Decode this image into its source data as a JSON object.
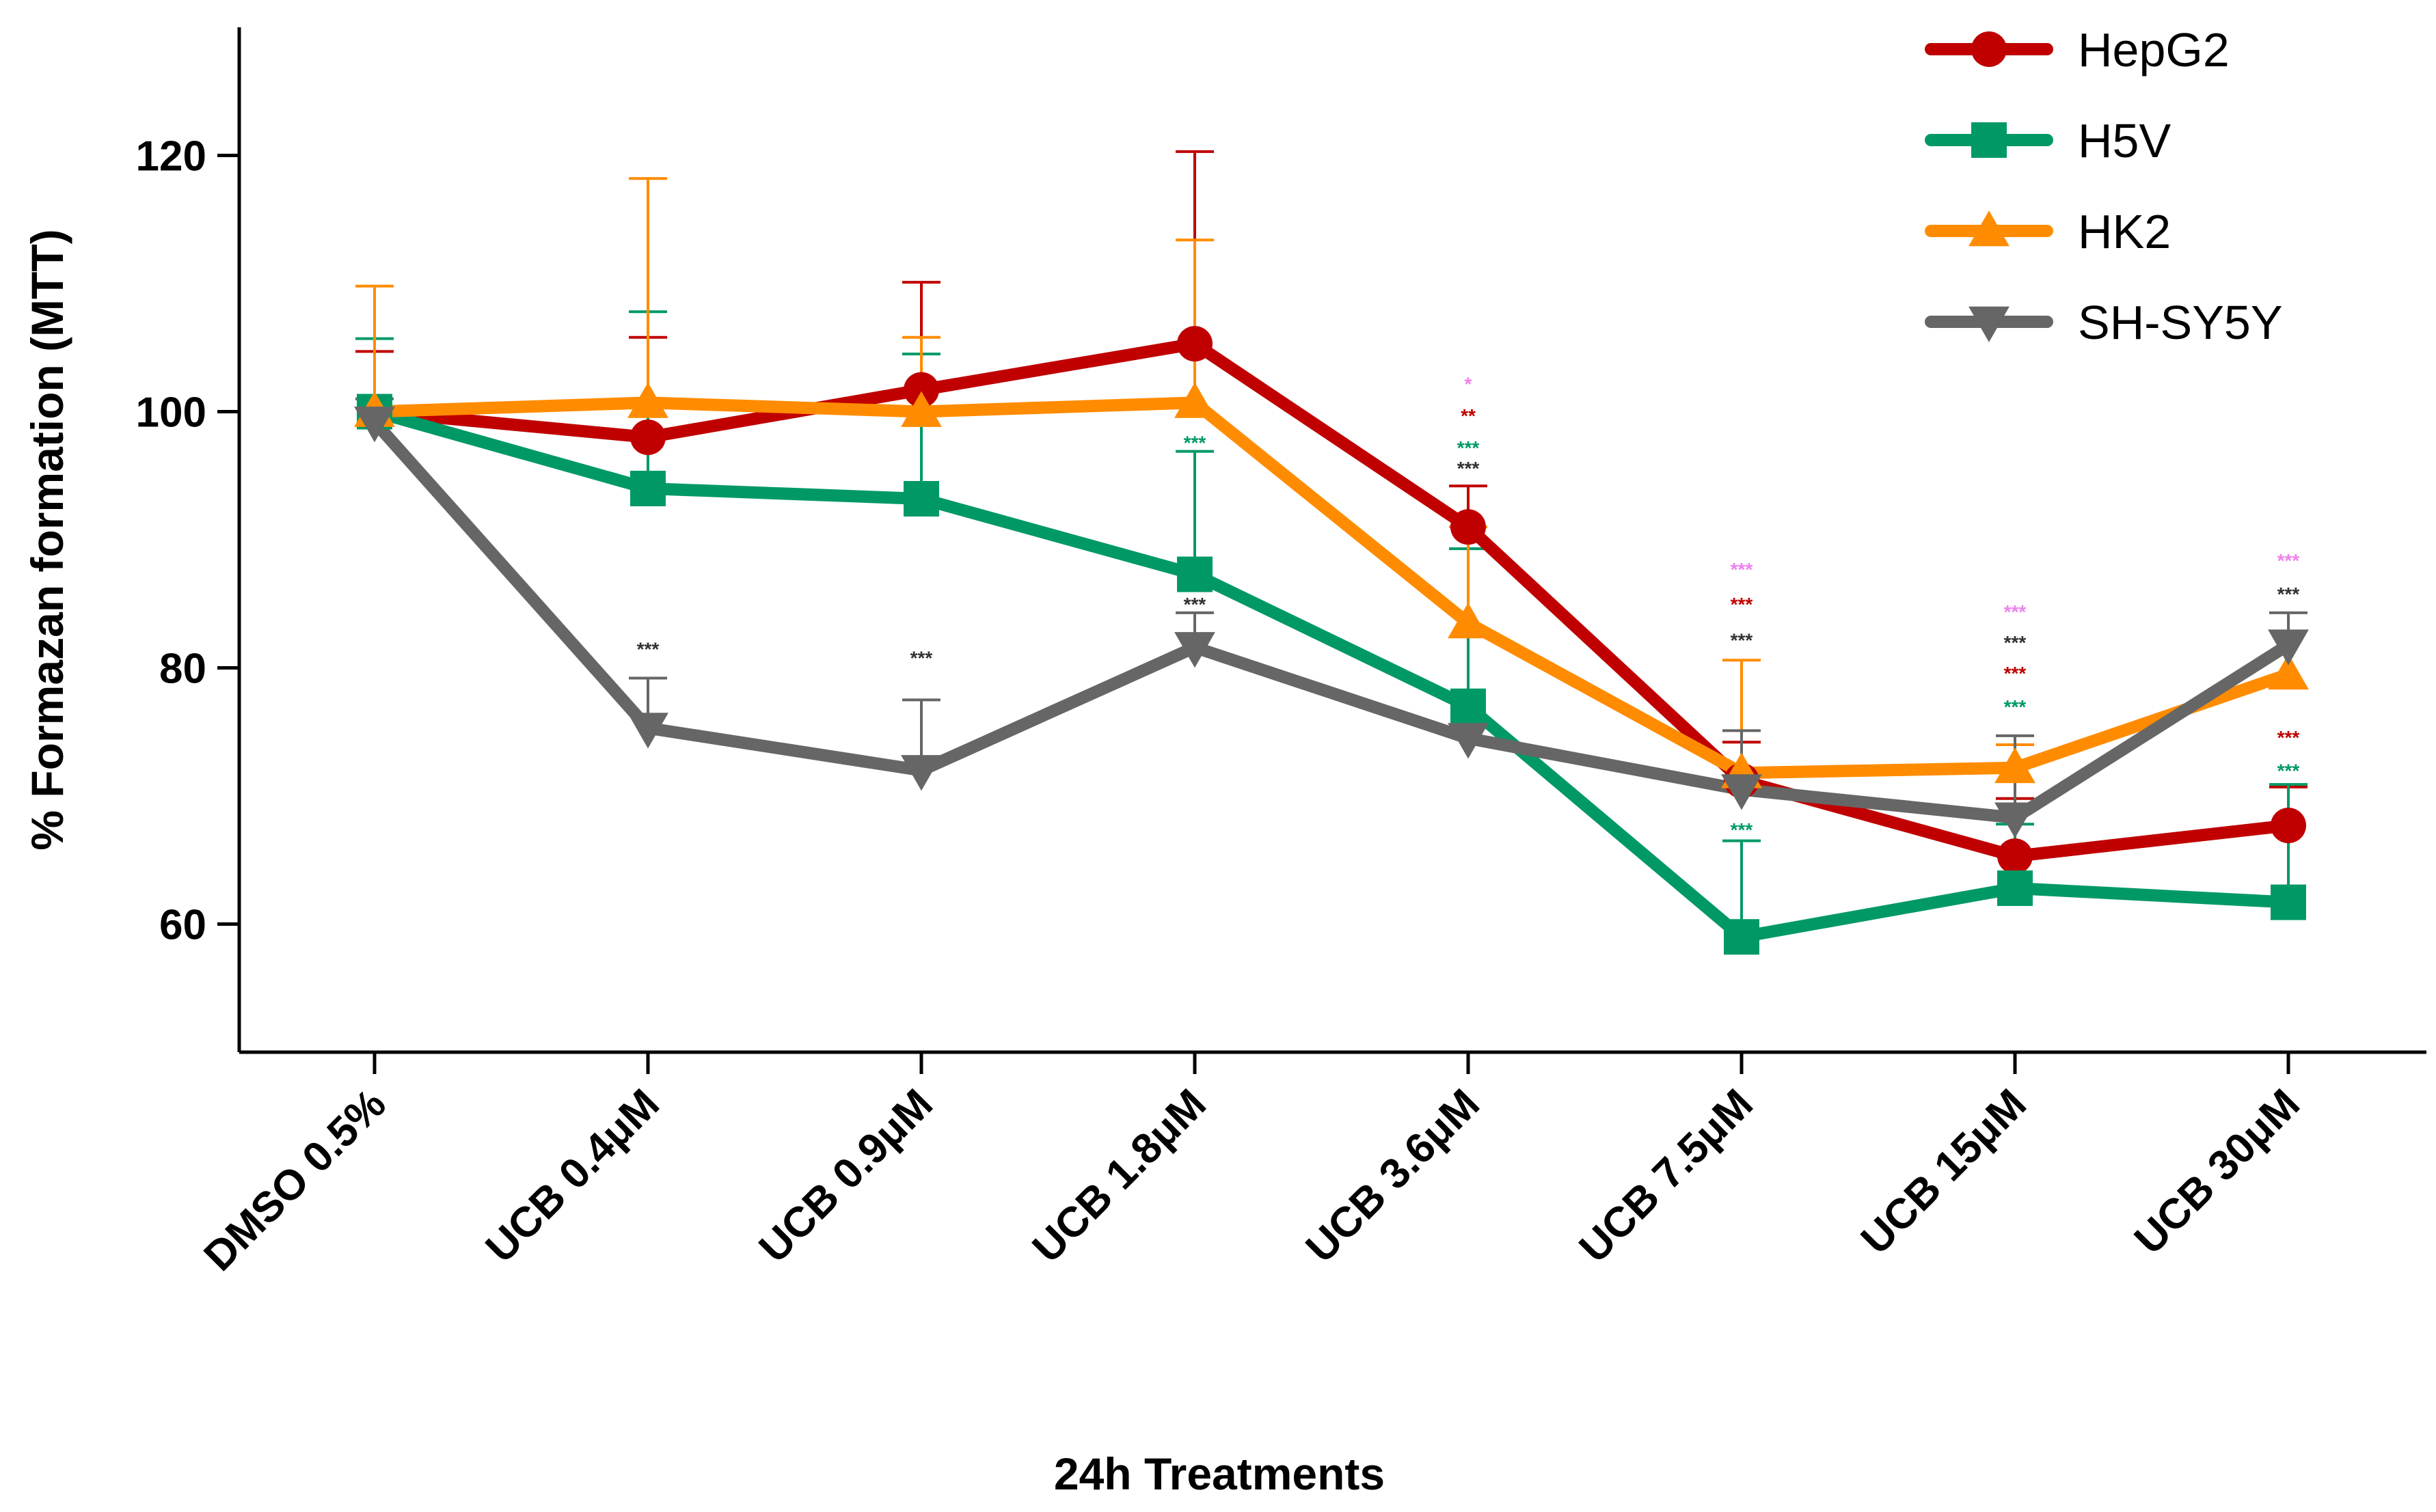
{
  "chart_data": {
    "type": "line",
    "title": "",
    "xlabel": "24h Treatments",
    "ylabel": "% Formazan formation (MTT)",
    "ylim": [
      50,
      130
    ],
    "yticks": [
      60,
      80,
      100,
      120
    ],
    "categories": [
      "DMSO 0.5%",
      "UCB 0.4μM",
      "UCB 0.9μM",
      "UCB 1.8μM",
      "UCB 3.6μM",
      "UCB 7.5μM",
      "UCB 15μM",
      "UCB 30μM"
    ],
    "legend_position": "top-right",
    "series": [
      {
        "name": "HepG2",
        "color": "#c00000",
        "marker": "circle",
        "values": [
          100,
          98,
          101.7,
          105.3,
          91,
          71.2,
          65.3,
          67.7
        ],
        "errors": [
          4.7,
          7.8,
          8.4,
          15,
          3.2,
          3.0,
          4.5,
          3.0
        ]
      },
      {
        "name": "H5V",
        "color": "#009966",
        "marker": "square",
        "values": [
          100,
          94,
          93.2,
          87.3,
          77,
          59,
          62.8,
          61.7
        ],
        "errors": [
          5.7,
          13.8,
          11.3,
          9.6,
          12.3,
          7.5,
          5.0,
          9.2
        ]
      },
      {
        "name": "HK2",
        "color": "#ff8c00",
        "marker": "triangle-up",
        "values": [
          100,
          100.7,
          100,
          100.7,
          83.5,
          71.8,
          72.2,
          79.5
        ],
        "errors": [
          9.8,
          17.5,
          5.8,
          12.7,
          7.5,
          8.8,
          1.8,
          0
        ]
      },
      {
        "name": "SH-SY5Y",
        "color": "#666666",
        "marker": "triangle-down",
        "values": [
          99.2,
          75.3,
          72,
          81.6,
          74.5,
          70.5,
          68.3,
          81.8
        ],
        "errors": [
          1.8,
          3.9,
          5.5,
          2.7,
          0,
          4.6,
          6.4,
          2.5
        ]
      }
    ],
    "annotations": [
      {
        "category": "UCB 0.4μM",
        "value": 81.5,
        "text": "***",
        "color": "#333333"
      },
      {
        "category": "UCB 0.9μM",
        "value": 80.8,
        "text": "***",
        "color": "#333333"
      },
      {
        "category": "UCB 1.8μM",
        "value": 97.6,
        "text": "***",
        "color": "#009966"
      },
      {
        "category": "UCB 1.8μM",
        "value": 85.0,
        "text": "***",
        "color": "#333333"
      },
      {
        "category": "UCB 3.6μM",
        "value": 102.2,
        "text": "*",
        "color": "#ee82ee"
      },
      {
        "category": "UCB 3.6μM",
        "value": 99.7,
        "text": "**",
        "color": "#c00000"
      },
      {
        "category": "UCB 3.6μM",
        "value": 97.2,
        "text": "***",
        "color": "#009966"
      },
      {
        "category": "UCB 3.6μM",
        "value": 95.6,
        "text": "***",
        "color": "#333333"
      },
      {
        "category": "UCB 7.5μM",
        "value": 87.7,
        "text": "***",
        "color": "#ee82ee"
      },
      {
        "category": "UCB 7.5μM",
        "value": 85.0,
        "text": "***",
        "color": "#c00000"
      },
      {
        "category": "UCB 7.5μM",
        "value": 82.2,
        "text": "***",
        "color": "#333333"
      },
      {
        "category": "UCB 7.5μM",
        "value": 67.4,
        "text": "***",
        "color": "#009966"
      },
      {
        "category": "UCB 15μM",
        "value": 84.4,
        "text": "***",
        "color": "#ee82ee"
      },
      {
        "category": "UCB 15μM",
        "value": 82.0,
        "text": "***",
        "color": "#333333"
      },
      {
        "category": "UCB 15μM",
        "value": 79.6,
        "text": "***",
        "color": "#c00000"
      },
      {
        "category": "UCB 15μM",
        "value": 77.0,
        "text": "***",
        "color": "#009966"
      },
      {
        "category": "UCB 30μM",
        "value": 88.4,
        "text": "***",
        "color": "#ee82ee"
      },
      {
        "category": "UCB 30μM",
        "value": 85.8,
        "text": "***",
        "color": "#333333"
      },
      {
        "category": "UCB 30μM",
        "value": 74.6,
        "text": "***",
        "color": "#c00000"
      },
      {
        "category": "UCB 30μM",
        "value": 72.0,
        "text": "***",
        "color": "#009966"
      }
    ]
  }
}
